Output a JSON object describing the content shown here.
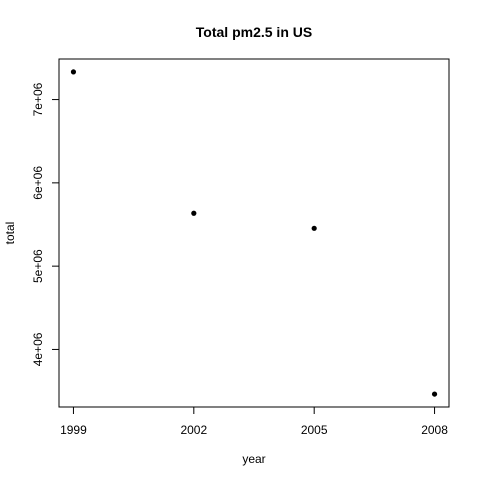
{
  "chart_data": {
    "type": "scatter",
    "title": "Total pm2.5 in US",
    "xlabel": "year",
    "ylabel": "total",
    "x": [
      1999,
      2002,
      2005,
      2008
    ],
    "y": [
      7332000,
      5635000,
      5454000,
      3464000
    ],
    "xlim": [
      1998.64,
      2008.36
    ],
    "ylim": [
      3309000,
      7487000
    ],
    "xticks": [
      1999,
      2002,
      2005,
      2008
    ],
    "xtick_labels": [
      "1999",
      "2002",
      "2005",
      "2008"
    ],
    "yticks": [
      4000000,
      5000000,
      6000000,
      7000000
    ],
    "ytick_labels": [
      "4e+06",
      "5e+06",
      "6e+06",
      "7e+06"
    ],
    "grid": false,
    "legend": "none",
    "point_color": "#000000",
    "axis_color": "#000000"
  }
}
